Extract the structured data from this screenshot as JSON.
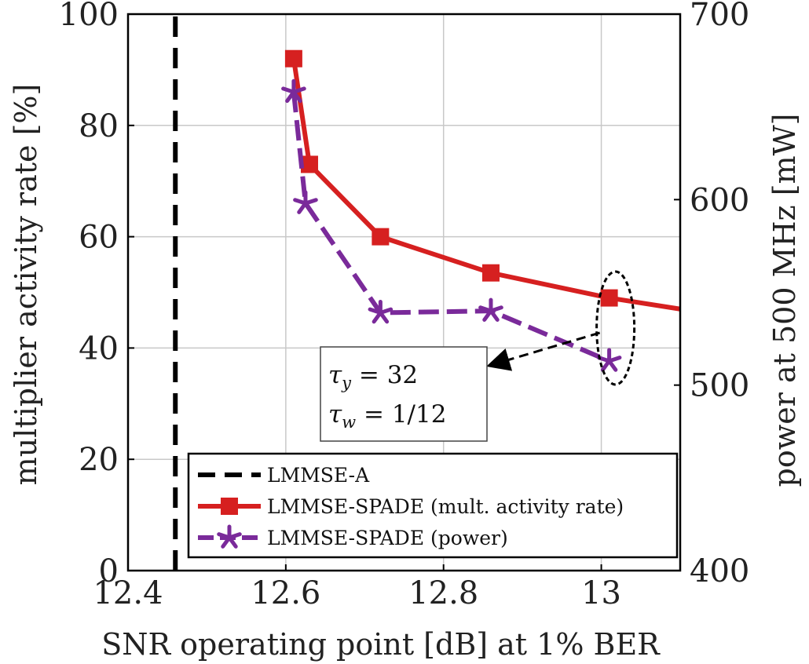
{
  "chart_data": {
    "type": "line",
    "xlabel": "SNR operating point [dB] at 1% BER",
    "ylabel": "multiplier activity rate [%]",
    "y2label": "power at 500 MHz [mW]",
    "xlim": [
      12.4,
      13.1
    ],
    "ylim": [
      0,
      100
    ],
    "y2lim": [
      400,
      700
    ],
    "xticks": [
      "12.4",
      "12.6",
      "12.8",
      "13"
    ],
    "xtick_values": [
      12.4,
      12.6,
      12.8,
      13.0
    ],
    "yticks": [
      "0",
      "20",
      "40",
      "60",
      "80",
      "100"
    ],
    "ytick_values": [
      0,
      20,
      40,
      60,
      80,
      100
    ],
    "y2ticks": [
      "400",
      "500",
      "600",
      "700"
    ],
    "y2tick_values": [
      400,
      500,
      600,
      700
    ],
    "grid": true,
    "legend_position": "bottom-right",
    "series": [
      {
        "name": "LMMSE-A",
        "type": "vline",
        "axis": "left",
        "color": "#000000",
        "style": "dashed",
        "marker": "none",
        "x": [
          12.46,
          12.46
        ],
        "y": [
          0,
          100
        ]
      },
      {
        "name": "LMMSE-SPADE (mult. activity rate)",
        "axis": "left",
        "color": "#d62020",
        "style": "solid",
        "marker": "square",
        "x": [
          12.61,
          12.63,
          12.72,
          12.86,
          13.01,
          13.1
        ],
        "y": [
          92,
          73,
          60,
          53.5,
          49,
          47
        ],
        "marker_points": [
          0,
          1,
          2,
          3,
          4
        ]
      },
      {
        "name": "LMMSE-SPADE (power)",
        "axis": "right",
        "color": "#7a2a9a",
        "style": "dashed",
        "marker": "star",
        "x": [
          12.61,
          12.625,
          12.72,
          12.86,
          13.01
        ],
        "y": [
          658,
          598,
          539,
          540,
          513
        ],
        "marker_points": [
          0,
          1,
          2,
          3,
          4
        ]
      }
    ],
    "annotation": {
      "line1": "τ",
      "line1_sub": "y",
      "line1_rest": " = 32",
      "line2": "τ",
      "line2_sub": "w",
      "line2_rest": " = 1/12",
      "points_to_x": 13.01
    }
  }
}
